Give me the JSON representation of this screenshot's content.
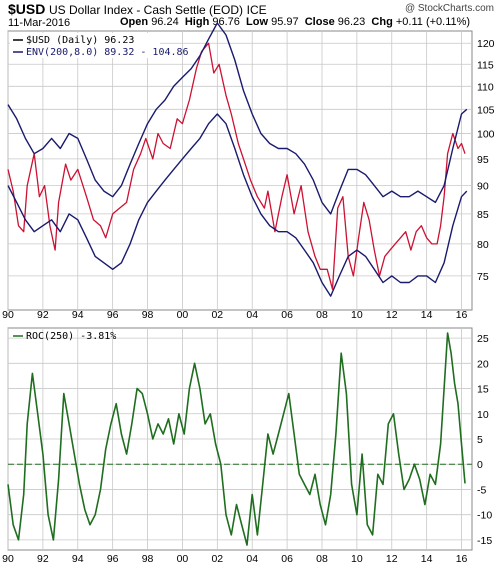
{
  "header": {
    "symbol": "$USD",
    "name": "US Dollar Index - Cash Settle (EOD)",
    "exchange": "ICE",
    "credit": "@ StockCharts.com",
    "date": "11-Mar-2016",
    "open_label": "Open",
    "open": "96.24",
    "high_label": "High",
    "high": "96.76",
    "low_label": "Low",
    "low": "95.97",
    "close_label": "Close",
    "close": "96.23",
    "chg_label": "Chg",
    "chg": "+0.11 (+0.11%)"
  },
  "colors": {
    "price": "#cc1133",
    "envelope": "#1a1a6e",
    "roc": "#1f6e1f",
    "grid": "#c8c8c8",
    "frame": "#888888"
  },
  "chart_data": [
    {
      "type": "line",
      "panel": "price",
      "title": "",
      "legend_position": "top-left",
      "legend": [
        "$USD (Daily) 96.23",
        "ENV(200,8.0) 89.32 - 104.86"
      ],
      "x_tick_labels": [
        "90",
        "92",
        "94",
        "96",
        "98",
        "00",
        "02",
        "04",
        "06",
        "08",
        "10",
        "12",
        "14",
        "16"
      ],
      "y_tick_labels": [
        "75",
        "80",
        "85",
        "90",
        "95",
        "100",
        "105",
        "110",
        "115",
        "120"
      ],
      "xlim": [
        1990,
        2016.6
      ],
      "ylim": [
        70,
        123
      ],
      "log_scale": true,
      "grid": true,
      "series": [
        {
          "name": "$USD (Daily)",
          "x": [
            1990.0,
            1990.3,
            1990.6,
            1990.9,
            1991.1,
            1991.5,
            1991.8,
            1992.1,
            1992.4,
            1992.7,
            1992.9,
            1993.3,
            1993.6,
            1994.0,
            1994.5,
            1994.9,
            1995.3,
            1995.6,
            1996.0,
            1996.4,
            1996.8,
            1997.2,
            1997.6,
            1997.9,
            1998.3,
            1998.6,
            1998.9,
            1999.3,
            1999.7,
            2000.0,
            2000.4,
            2000.8,
            2001.1,
            2001.5,
            2001.8,
            2002.1,
            2002.5,
            2002.8,
            2003.2,
            2003.6,
            2003.9,
            2004.3,
            2004.7,
            2004.9,
            2005.3,
            2005.7,
            2006.0,
            2006.4,
            2006.8,
            2007.2,
            2007.6,
            2007.9,
            2008.3,
            2008.6,
            2008.9,
            2009.2,
            2009.5,
            2009.8,
            2010.1,
            2010.4,
            2010.7,
            2011.0,
            2011.3,
            2011.6,
            2011.9,
            2012.2,
            2012.5,
            2012.8,
            2013.1,
            2013.4,
            2013.7,
            2014.0,
            2014.3,
            2014.6,
            2014.8,
            2015.0,
            2015.2,
            2015.5,
            2015.8,
            2016.0,
            2016.2
          ],
          "values": [
            93,
            89,
            83,
            82,
            90,
            96,
            88,
            90,
            83,
            79,
            87,
            94,
            91,
            93,
            88,
            84,
            83,
            81,
            85,
            86,
            87,
            93,
            96,
            99,
            95,
            100,
            98,
            97,
            103,
            102,
            107,
            114,
            118,
            120,
            113,
            115,
            108,
            104,
            98,
            94,
            91,
            88,
            86,
            89,
            82,
            88,
            92,
            85,
            90,
            82,
            78,
            76,
            76,
            73,
            86,
            88,
            78,
            75,
            81,
            87,
            84,
            79,
            75,
            78,
            79,
            80,
            81,
            82,
            79,
            82,
            83,
            81,
            80,
            80,
            83,
            88,
            96,
            100,
            97,
            98,
            96
          ]
        },
        {
          "name": "ENV upper",
          "x": [
            1990.0,
            1990.5,
            1991.0,
            1991.5,
            1992.0,
            1992.5,
            1993.0,
            1993.5,
            1994.0,
            1994.5,
            1995.0,
            1995.5,
            1996.0,
            1996.5,
            1997.0,
            1997.5,
            1998.0,
            1998.5,
            1999.0,
            1999.5,
            2000.0,
            2000.5,
            2001.0,
            2001.5,
            2002.0,
            2002.5,
            2003.0,
            2003.5,
            2004.0,
            2004.5,
            2005.0,
            2005.5,
            2006.0,
            2006.5,
            2007.0,
            2007.5,
            2008.0,
            2008.5,
            2009.0,
            2009.5,
            2010.0,
            2010.5,
            2011.0,
            2011.5,
            2012.0,
            2012.5,
            2013.0,
            2013.5,
            2014.0,
            2014.5,
            2015.0,
            2015.5,
            2016.0,
            2016.3
          ],
          "values": [
            106,
            103,
            99,
            96,
            97,
            99,
            97,
            100,
            99,
            95,
            91,
            89,
            88,
            90,
            94,
            98,
            102,
            105,
            107,
            110,
            112,
            114,
            117,
            121,
            125,
            122,
            116,
            109,
            104,
            100,
            98,
            97,
            97,
            96,
            94,
            91,
            87,
            85,
            89,
            93,
            93,
            92,
            90,
            88,
            89,
            88,
            88,
            89,
            88,
            87,
            90,
            97,
            104,
            105
          ]
        },
        {
          "name": "ENV lower",
          "x": [
            1990.0,
            1990.5,
            1991.0,
            1991.5,
            1992.0,
            1992.5,
            1993.0,
            1993.5,
            1994.0,
            1994.5,
            1995.0,
            1995.5,
            1996.0,
            1996.5,
            1997.0,
            1997.5,
            1998.0,
            1998.5,
            1999.0,
            1999.5,
            2000.0,
            2000.5,
            2001.0,
            2001.5,
            2002.0,
            2002.5,
            2003.0,
            2003.5,
            2004.0,
            2004.5,
            2005.0,
            2005.5,
            2006.0,
            2006.5,
            2007.0,
            2007.5,
            2008.0,
            2008.5,
            2009.0,
            2009.5,
            2010.0,
            2010.5,
            2011.0,
            2011.5,
            2012.0,
            2012.5,
            2013.0,
            2013.5,
            2014.0,
            2014.5,
            2015.0,
            2015.5,
            2016.0,
            2016.3
          ],
          "values": [
            90,
            87,
            84,
            82,
            83,
            84,
            82,
            85,
            84,
            81,
            78,
            77,
            76,
            77,
            80,
            84,
            87,
            89,
            91,
            93,
            95,
            97,
            99,
            102,
            104,
            102,
            97,
            92,
            88,
            85,
            83,
            82,
            82,
            81,
            79,
            77,
            74,
            72,
            75,
            78,
            79,
            78,
            76,
            74,
            75,
            74,
            74,
            75,
            75,
            74,
            77,
            83,
            88,
            89
          ]
        }
      ]
    },
    {
      "type": "line",
      "panel": "roc",
      "legend": [
        "ROC(250) -3.81%"
      ],
      "x_tick_labels": [
        "90",
        "92",
        "94",
        "96",
        "98",
        "00",
        "02",
        "04",
        "06",
        "08",
        "10",
        "12",
        "14",
        "16"
      ],
      "y_tick_labels": [
        "-15",
        "-10",
        "-5",
        "0",
        "5",
        "10",
        "15",
        "20",
        "25"
      ],
      "xlim": [
        1990,
        2016.6
      ],
      "ylim": [
        -17,
        27
      ],
      "grid": true,
      "series": [
        {
          "name": "ROC(250)",
          "x": [
            1990.0,
            1990.3,
            1990.6,
            1990.9,
            1991.1,
            1991.4,
            1991.7,
            1992.0,
            1992.3,
            1992.6,
            1992.9,
            1993.2,
            1993.5,
            1993.8,
            1994.1,
            1994.4,
            1994.7,
            1995.0,
            1995.3,
            1995.6,
            1995.9,
            1996.2,
            1996.5,
            1996.8,
            1997.1,
            1997.4,
            1997.7,
            1998.0,
            1998.3,
            1998.6,
            1998.9,
            1999.2,
            1999.5,
            1999.8,
            2000.1,
            2000.4,
            2000.7,
            2001.0,
            2001.3,
            2001.6,
            2001.9,
            2002.2,
            2002.5,
            2002.8,
            2003.1,
            2003.4,
            2003.7,
            2004.0,
            2004.3,
            2004.6,
            2004.9,
            2005.2,
            2005.5,
            2005.8,
            2006.1,
            2006.4,
            2006.7,
            2007.0,
            2007.3,
            2007.6,
            2007.9,
            2008.2,
            2008.5,
            2008.8,
            2009.1,
            2009.4,
            2009.7,
            2010.0,
            2010.3,
            2010.6,
            2010.9,
            2011.2,
            2011.5,
            2011.8,
            2012.1,
            2012.4,
            2012.7,
            2013.0,
            2013.3,
            2013.6,
            2013.9,
            2014.2,
            2014.5,
            2014.8,
            2015.0,
            2015.2,
            2015.4,
            2015.6,
            2015.8,
            2016.0,
            2016.2
          ],
          "values": [
            -4,
            -12,
            -15,
            -6,
            8,
            18,
            10,
            2,
            -10,
            -15,
            -3,
            14,
            8,
            2,
            -4,
            -9,
            -12,
            -10,
            -5,
            3,
            8,
            12,
            6,
            2,
            8,
            15,
            14,
            10,
            5,
            8,
            6,
            9,
            4,
            10,
            6,
            15,
            20,
            15,
            8,
            10,
            4,
            0,
            -10,
            -14,
            -8,
            -12,
            -16,
            -6,
            -14,
            -4,
            6,
            2,
            6,
            10,
            14,
            6,
            -2,
            -4,
            -6,
            -2,
            -8,
            -12,
            -6,
            6,
            22,
            14,
            -4,
            -10,
            2,
            -12,
            -14,
            -2,
            -4,
            8,
            10,
            2,
            -5,
            -3,
            0,
            -3,
            -8,
            -2,
            -4,
            4,
            15,
            26,
            22,
            16,
            12,
            4,
            -3.8
          ]
        }
      ]
    }
  ]
}
